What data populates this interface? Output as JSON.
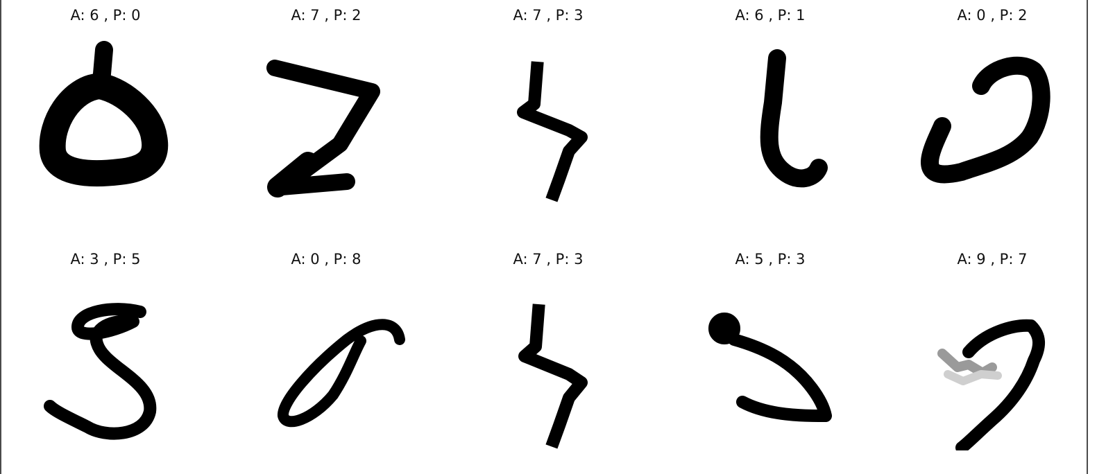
{
  "grid": {
    "cells": [
      {
        "actual": "6",
        "predicted": "0",
        "title": "A: 6 , P: 0",
        "glyph": "digit-ring-icon"
      },
      {
        "actual": "7",
        "predicted": "2",
        "title": "A: 7 , P: 2",
        "glyph": "digit-z-stroke-icon"
      },
      {
        "actual": "7",
        "predicted": "3",
        "title": "A: 7 , P: 3",
        "glyph": "digit-zigzag-icon"
      },
      {
        "actual": "6",
        "predicted": "1",
        "title": "A: 6 , P: 1",
        "glyph": "digit-hook-icon"
      },
      {
        "actual": "0",
        "predicted": "2",
        "title": "A: 0 , P: 2",
        "glyph": "digit-curl-icon"
      },
      {
        "actual": "3",
        "predicted": "5",
        "title": "A: 3 , P: 5",
        "glyph": "digit-s-loop-icon"
      },
      {
        "actual": "0",
        "predicted": "8",
        "title": "A: 0 , P: 8",
        "glyph": "digit-slanted-loop-icon"
      },
      {
        "actual": "7",
        "predicted": "3",
        "title": "A: 7 , P: 3",
        "glyph": "digit-zigzag-icon"
      },
      {
        "actual": "5",
        "predicted": "3",
        "title": "A: 5 , P: 3",
        "glyph": "digit-blob-hook-icon"
      },
      {
        "actual": "9",
        "predicted": "7",
        "title": "A: 9 , P: 7",
        "glyph": "digit-faded-seven-icon"
      }
    ]
  },
  "colors": {
    "ink": "#000000",
    "text": "#111111",
    "border": "#4a4a4a",
    "background": "#ffffff"
  }
}
